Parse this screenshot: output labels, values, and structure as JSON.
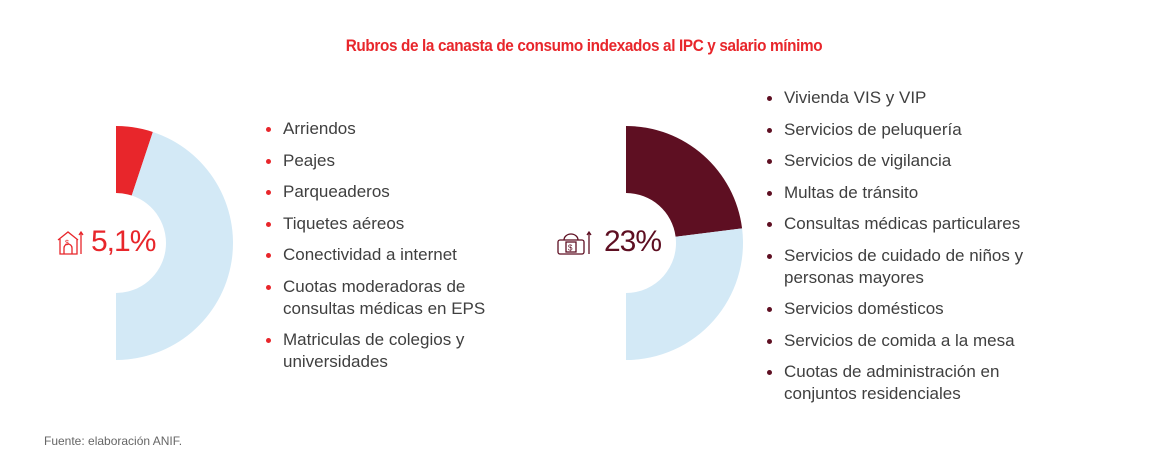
{
  "chart_data": [
    {
      "type": "pie",
      "title": "Rubros de la canasta de consumo indexados al IPC y salario mínimo",
      "label": "5,1%",
      "value": 5.1,
      "icon": "house-dollar-up-icon",
      "colors": {
        "value": "#e8262b",
        "rest": "#d3e9f6"
      },
      "items": [
        "Arriendos",
        "Peajes",
        "Parqueaderos",
        "Tiquetes aéreos",
        "Conectividad a internet",
        "Cuotas moderadoras de consultas médicas en EPS",
        "Matriculas de colegios y universidades"
      ]
    },
    {
      "type": "pie",
      "label": "23%",
      "value": 23,
      "icon": "money-bag-up-icon",
      "colors": {
        "value": "#5e0f22",
        "rest": "#d3e9f6"
      },
      "items": [
        "Vivienda VIS y VIP",
        "Servicios de peluquería",
        "Servicios de vigilancia",
        "Multas de tránsito",
        "Consultas médicas particulares",
        "Servicios de cuidado de niños y personas mayores",
        "Servicios domésticos",
        "Servicios de comida a la mesa",
        "Cuotas de administración en conjuntos residenciales"
      ]
    }
  ],
  "source": "Fuente: elaboración ANIF."
}
